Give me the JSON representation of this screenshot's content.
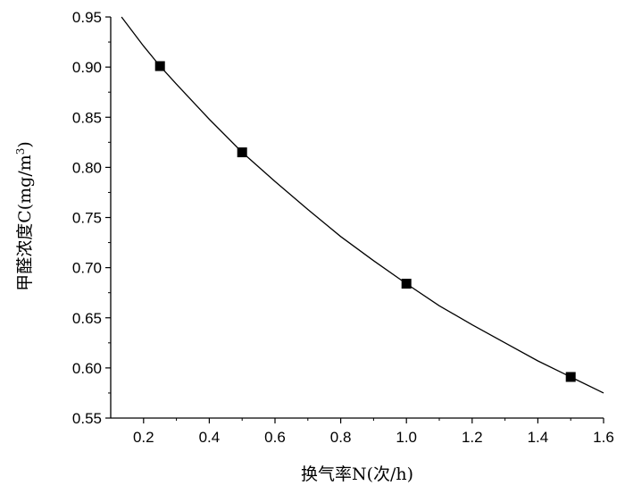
{
  "chart_data": {
    "type": "scatter",
    "title": "",
    "xlabel": "换气率N(次/h)",
    "ylabel": "甲醛浓度C(mg/m",
    "ylabel_superscript": "3",
    "ylabel_suffix": ")",
    "xlim": [
      0.1,
      1.6
    ],
    "ylim": [
      0.55,
      0.95
    ],
    "x_ticks": [
      "0.2",
      "0.4",
      "0.6",
      "0.8",
      "1.0",
      "1.2",
      "1.4",
      "1.6"
    ],
    "y_ticks": [
      "0.55",
      "0.60",
      "0.65",
      "0.70",
      "0.75",
      "0.80",
      "0.85",
      "0.90",
      "0.95"
    ],
    "grid": false,
    "series": [
      {
        "marker": "square",
        "color": "#000000",
        "x": [
          0.25,
          0.5,
          1.0,
          1.5
        ],
        "y": [
          0.901,
          0.815,
          0.684,
          0.591
        ]
      }
    ],
    "fit_curve": {
      "color": "#000000",
      "x": [
        0.133,
        0.2,
        0.25,
        0.3,
        0.4,
        0.5,
        0.6,
        0.7,
        0.8,
        0.9,
        1.0,
        1.1,
        1.2,
        1.3,
        1.4,
        1.5,
        1.6
      ],
      "y": [
        0.95,
        0.921,
        0.901,
        0.883,
        0.848,
        0.815,
        0.786,
        0.758,
        0.731,
        0.707,
        0.684,
        0.662,
        0.643,
        0.625,
        0.607,
        0.591,
        0.575
      ]
    }
  }
}
